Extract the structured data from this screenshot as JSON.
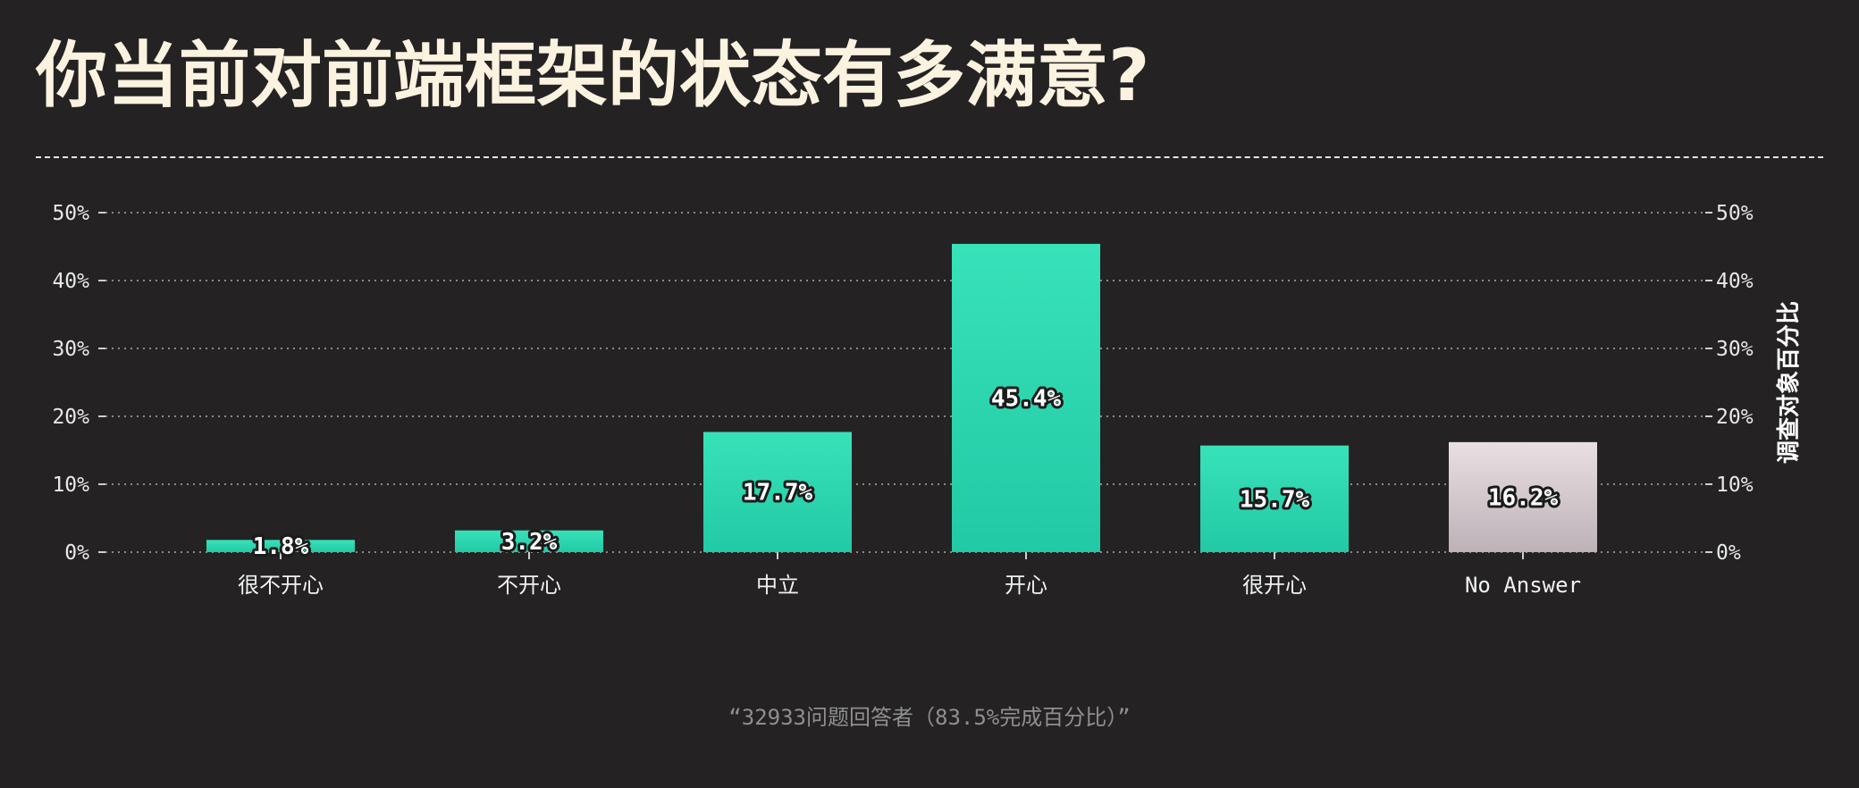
{
  "title": "你当前对前端框架的状态有多满意?",
  "footnote": "“32933问题回答者（83.5%完成百分比）”",
  "colors": {
    "background": "#242223",
    "title": "#fbf3e0",
    "bar_top": "#38e2b9",
    "bar_bottom": "#22c9a5",
    "no_answer_top": "#e9dfe3",
    "no_answer_bottom": "#bdb2b7",
    "grid": "#8a8a8a"
  },
  "chart_data": {
    "type": "bar",
    "categories": [
      "很不开心",
      "不开心",
      "中立",
      "开心",
      "很开心",
      "No Answer"
    ],
    "values": [
      1.8,
      3.2,
      17.7,
      45.4,
      15.7,
      16.2
    ],
    "data_labels": [
      "1.8%",
      "3.2%",
      "17.7%",
      "45.4%",
      "15.7%",
      "16.2%"
    ],
    "yticks": [
      0,
      10,
      20,
      30,
      40,
      50
    ],
    "ytick_labels": [
      "0%",
      "10%",
      "20%",
      "30%",
      "40%",
      "50%"
    ],
    "ylim": [
      0,
      50
    ],
    "ylabel": "调查对象百分比",
    "xlabel": "",
    "grid": true,
    "y_axis_sides": [
      "left",
      "right"
    ]
  }
}
